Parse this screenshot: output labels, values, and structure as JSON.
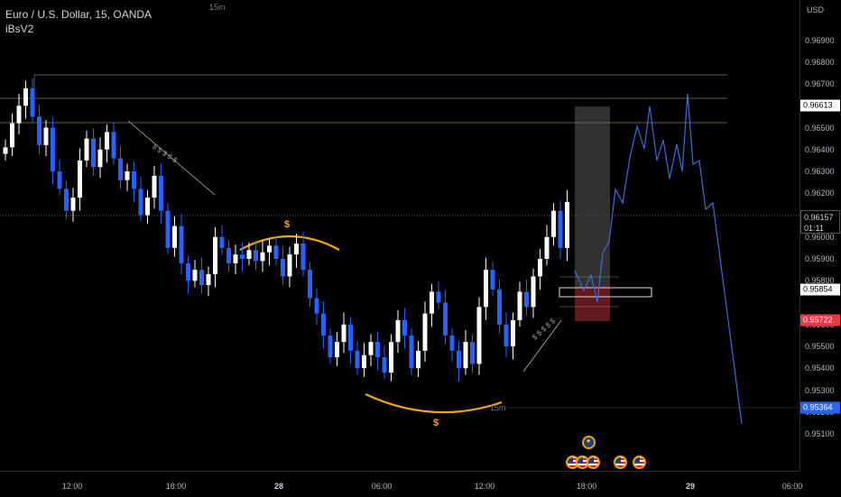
{
  "header": {
    "symbol": "Euro / U.S. Dollar, 15, OANDA",
    "indicator": "iBsV2"
  },
  "timeframe_labels": {
    "top": "15m",
    "mid": "15m"
  },
  "price_axis": {
    "currency": "USD",
    "ticks": [
      "0.96900",
      "0.96800",
      "0.96700",
      "0.96500",
      "0.96400",
      "0.96300",
      "0.96200",
      "0.96000",
      "0.95900",
      "0.95800",
      "0.95600",
      "0.95500",
      "0.95400",
      "0.95300",
      "0.95200",
      "0.95100"
    ],
    "badges": {
      "upper_level": "0.96613",
      "last_price": "0.96157",
      "countdown": "01:11",
      "entry_level": "0.95854",
      "stop_level": "0.95722",
      "lower_level": "0.95364"
    }
  },
  "time_axis": {
    "ticks": [
      {
        "label": "12:00",
        "bold": false
      },
      {
        "label": "18:00",
        "bold": false
      },
      {
        "label": "28",
        "bold": true
      },
      {
        "label": "06:00",
        "bold": false
      },
      {
        "label": "12:00",
        "bold": false
      },
      {
        "label": "18:00",
        "bold": false
      },
      {
        "label": "29",
        "bold": true
      },
      {
        "label": "06:00",
        "bold": false
      }
    ]
  },
  "annotations": {
    "dollar_top": "$",
    "dollar_bottom": "$",
    "liquidity_marks": "$ $ $ $ $",
    "liquidity_marks_2": "$ $ $ $ $"
  },
  "colors": {
    "up_candle": "#ffffff",
    "down_candle": "#2962ff",
    "projection": "#3a6ed8",
    "arc": "#f7a600",
    "background": "#000000"
  },
  "events": [
    "eu-flag-icon",
    "us-flag-icon",
    "us-flag-icon",
    "us-flag-icon",
    "us-flag-icon",
    "us-flag-icon"
  ]
}
